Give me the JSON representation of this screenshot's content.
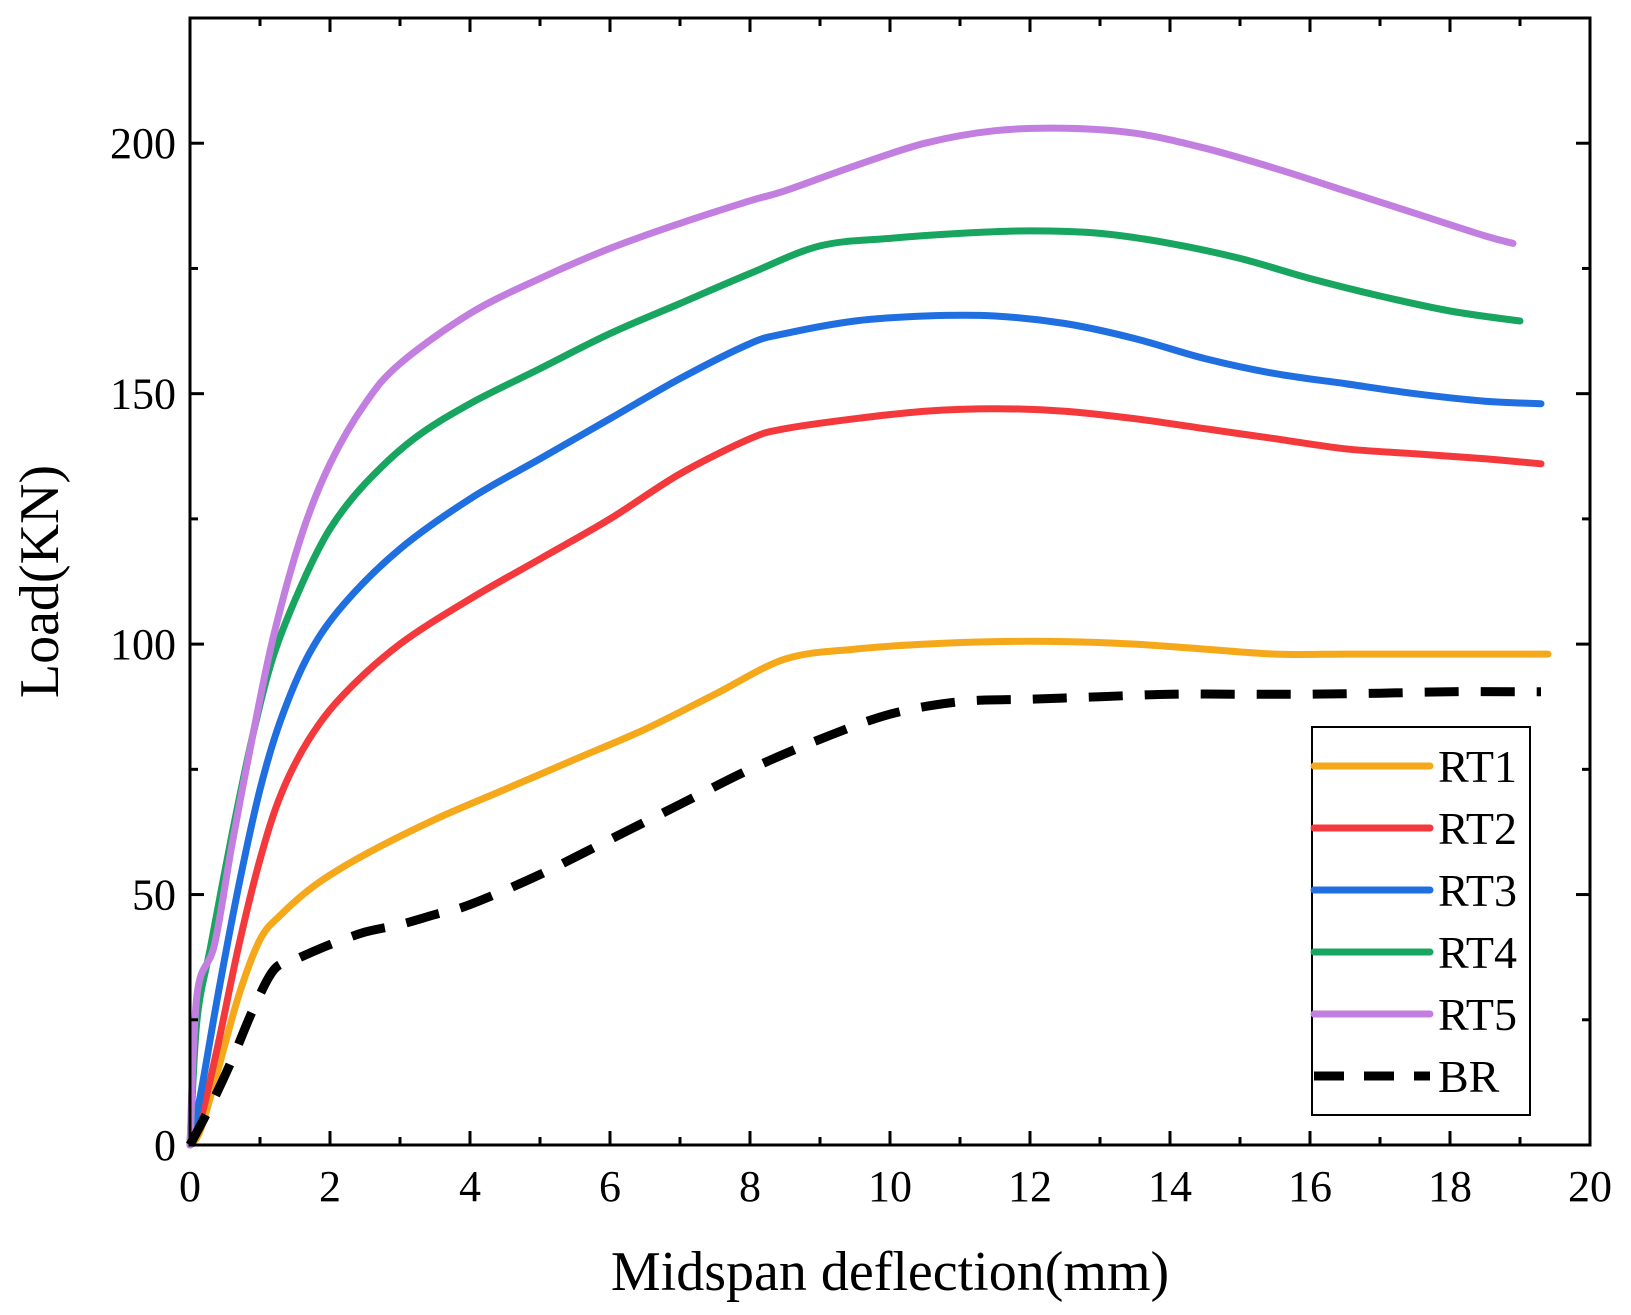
{
  "chart_data": {
    "type": "line",
    "title": "",
    "xlabel": "Midspan deflection(mm)",
    "ylabel": "Load(KN)",
    "xlim": [
      0,
      20
    ],
    "ylim": [
      0,
      225
    ],
    "xticks": [
      0,
      2,
      4,
      6,
      8,
      10,
      12,
      14,
      16,
      18,
      20
    ],
    "yticks": [
      0,
      50,
      100,
      150,
      200
    ],
    "xtick_labels": [
      "0",
      "2",
      "4",
      "6",
      "8",
      "10",
      "12",
      "14",
      "16",
      "18",
      "20"
    ],
    "ytick_labels": [
      "0",
      "50",
      "100",
      "150",
      "200"
    ],
    "grid": false,
    "legend_position": "bottom-right",
    "series": [
      {
        "name": "RT1",
        "color": "#F5A91A",
        "dashed": false,
        "x": [
          0,
          0.15,
          0.4,
          0.7,
          1.0,
          1.3,
          1.8,
          2.5,
          3.5,
          4.5,
          5.5,
          6.5,
          7.5,
          8.5,
          9.5,
          10.5,
          11.5,
          12.5,
          13.5,
          14.5,
          15.5,
          16.5,
          17.5,
          18.5,
          19.4
        ],
        "y": [
          0,
          3,
          15,
          30,
          41,
          46,
          52,
          58,
          65,
          71,
          77,
          83,
          90,
          97,
          99,
          100,
          100.5,
          100.5,
          100,
          99,
          98,
          98,
          98,
          98,
          98
        ]
      },
      {
        "name": "RT2",
        "color": "#F4393C",
        "dashed": false,
        "x": [
          0,
          0.15,
          0.4,
          0.7,
          1.0,
          1.3,
          1.7,
          2.2,
          3.0,
          4.0,
          5.0,
          6.0,
          7.0,
          8.0,
          8.5,
          9.5,
          10.5,
          11.5,
          12.5,
          13.5,
          14.5,
          15.5,
          16.5,
          17.5,
          18.5,
          19.3
        ],
        "y": [
          0,
          5,
          20,
          40,
          57,
          70,
          81,
          90,
          100,
          109,
          117,
          125,
          134,
          141,
          143,
          145,
          146.5,
          147,
          146.5,
          145,
          143,
          141,
          139,
          138,
          137,
          136
        ]
      },
      {
        "name": "RT3",
        "color": "#1F6FE0",
        "dashed": false,
        "x": [
          0,
          0.15,
          0.4,
          0.7,
          1.0,
          1.3,
          1.7,
          2.2,
          3.0,
          4.0,
          5.0,
          6.0,
          7.0,
          8.0,
          8.5,
          9.5,
          10.5,
          11.5,
          12.5,
          13.5,
          14.5,
          15.5,
          16.5,
          17.5,
          18.5,
          19.3
        ],
        "y": [
          0,
          10,
          30,
          52,
          71,
          85,
          98,
          108,
          119,
          129,
          137,
          145,
          153,
          160,
          162,
          164.5,
          165.5,
          165.5,
          164,
          161,
          157,
          154,
          152,
          150,
          148.5,
          148
        ]
      },
      {
        "name": "RT4",
        "color": "#18A55F",
        "dashed": false,
        "x": [
          0,
          0.1,
          0.3,
          0.6,
          0.9,
          1.2,
          1.6,
          2.0,
          2.5,
          3.2,
          4.0,
          5.0,
          6.0,
          7.0,
          8.0,
          9.0,
          10.0,
          11.0,
          12.0,
          13.0,
          14.0,
          15.0,
          16.0,
          17.0,
          18.0,
          19.0
        ],
        "y": [
          0,
          25,
          40,
          62,
          82,
          98,
          112,
          123,
          132,
          141,
          148,
          155,
          162,
          168,
          174,
          179.5,
          181,
          182,
          182.5,
          182,
          180,
          177,
          173,
          169.5,
          166.5,
          164.5
        ]
      },
      {
        "name": "RT5",
        "color": "#C27FE0",
        "dashed": false,
        "x": [
          0,
          0.1,
          0.35,
          0.6,
          0.9,
          1.2,
          1.6,
          2.0,
          2.5,
          3.0,
          4.0,
          5.0,
          6.0,
          7.0,
          8.0,
          8.5,
          9.5,
          10.5,
          11.5,
          12.5,
          13.5,
          14.5,
          15.5,
          16.5,
          17.5,
          18.5,
          18.9
        ],
        "y": [
          0,
          30,
          40,
          60,
          82,
          102,
          122,
          136,
          148,
          156,
          166,
          173,
          179,
          184,
          188.5,
          190.5,
          195.5,
          200,
          202.5,
          203,
          202,
          199,
          195,
          190.5,
          186,
          181.5,
          180
        ]
      },
      {
        "name": "BR",
        "color": "#000000",
        "dashed": true,
        "x": [
          0,
          0.3,
          0.6,
          0.9,
          1.2,
          1.5,
          2.0,
          2.5,
          3.0,
          3.5,
          4.0,
          5.0,
          6.0,
          7.0,
          8.0,
          9.0,
          10.0,
          11.0,
          12.0,
          13.0,
          14.0,
          15.0,
          16.0,
          17.0,
          18.0,
          19.0,
          19.3
        ],
        "y": [
          0,
          8,
          17,
          27,
          35,
          37,
          40,
          42.5,
          44,
          46,
          48,
          54,
          61,
          68,
          75,
          81,
          86,
          88.5,
          89,
          89.5,
          90,
          90,
          90,
          90.2,
          90.5,
          90.5,
          90.5
        ]
      }
    ]
  }
}
